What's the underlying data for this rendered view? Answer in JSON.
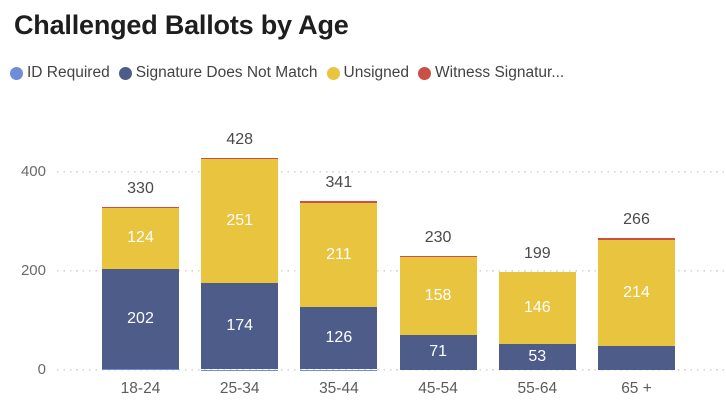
{
  "header": {
    "title": "Challenged Ballots by Age"
  },
  "legend": {
    "items": [
      {
        "label": "ID Required",
        "color": "#6f8cd9"
      },
      {
        "label": "Signature Does Not Match",
        "color": "#4e5c8a"
      },
      {
        "label": "Unsigned",
        "color": "#e9c43f"
      },
      {
        "label": "Witness Signatur...",
        "color": "#cb4f47"
      }
    ]
  },
  "chart_data": {
    "type": "bar",
    "subtype": "stacked-vertical",
    "title": "Challenged Ballots by Age",
    "categories": [
      "18-24",
      "25-34",
      "35-44",
      "45-54",
      "55-64",
      "65 +"
    ],
    "totals": [
      330,
      428,
      341,
      230,
      199,
      266
    ],
    "series": [
      {
        "name": "ID Required",
        "color": "#6f8cd9",
        "values": [
          2,
          1,
          1,
          0,
          0,
          0
        ],
        "labels": [
          null,
          null,
          null,
          null,
          null,
          null
        ]
      },
      {
        "name": "Signature Does Not Match",
        "color": "#4e5c8a",
        "values": [
          202,
          174,
          126,
          71,
          53,
          49
        ],
        "labels": [
          "202",
          "174",
          "126",
          "71",
          "53",
          null
        ]
      },
      {
        "name": "Unsigned",
        "color": "#e9c43f",
        "values": [
          124,
          251,
          211,
          158,
          146,
          214
        ],
        "labels": [
          "124",
          "251",
          "211",
          "158",
          "146",
          "214"
        ]
      },
      {
        "name": "Witness Signatur...",
        "color": "#cb4f47",
        "values": [
          2,
          2,
          3,
          1,
          0,
          3
        ],
        "labels": [
          null,
          null,
          null,
          null,
          null,
          null
        ]
      }
    ],
    "y_ticks": [
      0,
      200,
      400
    ],
    "ylim": [
      0,
      455
    ],
    "xlabel": "",
    "ylabel": "",
    "grid": "horizontal-dotted",
    "legend_position": "top",
    "total_labels_shown": true
  }
}
